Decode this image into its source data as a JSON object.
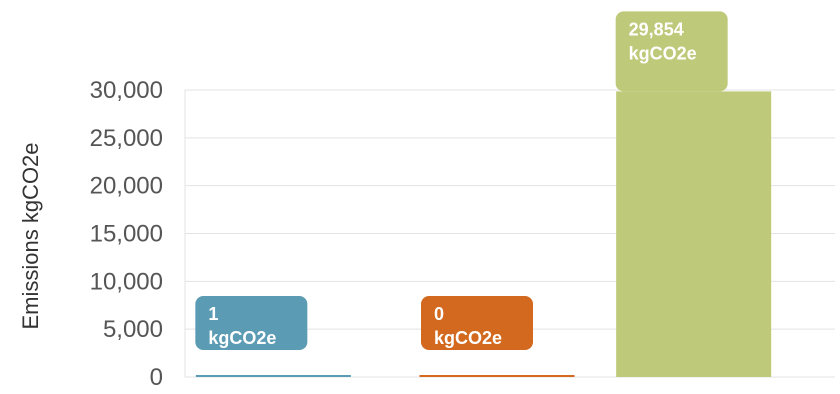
{
  "chart_data": {
    "type": "bar",
    "categories": [
      "",
      "",
      ""
    ],
    "values": [
      1,
      0,
      29854
    ],
    "colors": [
      "#5b9bb4",
      "#d2691e",
      "#bfc97a"
    ],
    "data_labels": [
      {
        "value": "1",
        "unit": "kgCO2e"
      },
      {
        "value": "0",
        "unit": "kgCO2e"
      },
      {
        "value": "29,854",
        "unit": "kgCO2e"
      }
    ],
    "ylabel": "Emissions kgCO2e",
    "ylim": [
      0,
      30000
    ],
    "yticks": [
      "0",
      "5,000",
      "10,000",
      "15,000",
      "20,000",
      "25,000",
      "30,000"
    ],
    "ytick_values": [
      0,
      5000,
      10000,
      15000,
      20000,
      25000,
      30000
    ],
    "grid": true
  }
}
